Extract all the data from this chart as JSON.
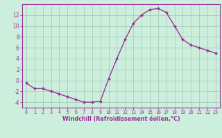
{
  "x": [
    0,
    1,
    2,
    3,
    4,
    5,
    6,
    7,
    8,
    9,
    10,
    11,
    12,
    13,
    14,
    15,
    16,
    17,
    18,
    19,
    20,
    21,
    22,
    23
  ],
  "y": [
    -0.5,
    -1.5,
    -1.5,
    -2.0,
    -2.5,
    -3.0,
    -3.5,
    -4.0,
    -4.0,
    -3.8,
    0.3,
    4.0,
    7.5,
    10.5,
    12.0,
    13.0,
    13.2,
    12.5,
    10.0,
    7.5,
    6.5,
    6.0,
    5.5,
    5.0
  ],
  "line_color": "#993399",
  "marker": "D",
  "marker_size": 2.0,
  "bg_color": "#cceedd",
  "grid_color": "#aaccbb",
  "xlabel": "Windchill (Refroidissement éolien,°C)",
  "xlabel_color": "#993399",
  "tick_color": "#993399",
  "spine_color": "#993399",
  "xlim": [
    -0.5,
    23.5
  ],
  "ylim": [
    -5,
    14
  ],
  "yticks": [
    -4,
    -2,
    0,
    2,
    4,
    6,
    8,
    10,
    12
  ],
  "xticks": [
    0,
    1,
    2,
    3,
    4,
    5,
    6,
    7,
    8,
    9,
    10,
    11,
    12,
    13,
    14,
    15,
    16,
    17,
    18,
    19,
    20,
    21,
    22,
    23
  ],
  "xlabel_fontsize": 5.8,
  "xtick_fontsize": 4.8,
  "ytick_fontsize": 5.5,
  "linewidth": 1.0
}
